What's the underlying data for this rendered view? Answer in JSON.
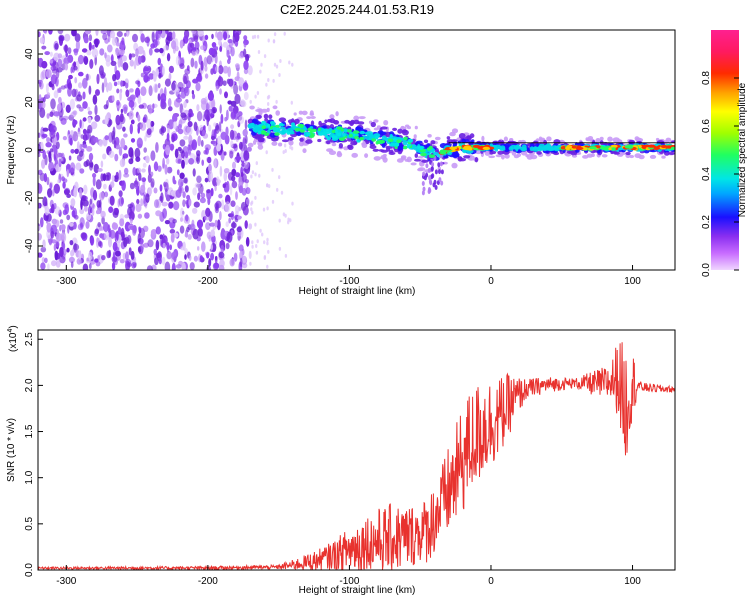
{
  "page_title": "C2E2.2025.244.01.53.R19",
  "chart_data": [
    {
      "type": "heatmap",
      "id": "spectrogram",
      "xlabel": "Height of straight line (km)",
      "ylabel": "Frequency (Hz)",
      "xlim": [
        -320,
        130
      ],
      "ylim": [
        -50,
        50
      ],
      "xticks": [
        -300,
        -200,
        -100,
        0,
        100
      ],
      "xtick_labels": [
        "-300",
        "-200",
        "-100",
        "0",
        "100"
      ],
      "yticks": [
        -40,
        -20,
        0,
        20,
        40
      ],
      "ytick_labels": [
        "-40",
        "-20",
        "0",
        "20",
        "40"
      ],
      "colorbar": {
        "label": "Normalized spectral amplitude",
        "range": [
          0,
          1
        ],
        "ticks": [
          0.0,
          0.2,
          0.4,
          0.6,
          0.8
        ],
        "tick_labels": [
          "0.0",
          "0.2",
          "0.4",
          "0.6",
          "0.8"
        ]
      },
      "regions": {
        "noise_x": [
          -320,
          -170
        ],
        "sparse_x": [
          -170,
          -140
        ],
        "signal_x": [
          -170,
          130
        ]
      },
      "track": {
        "x": [
          -170,
          -150,
          -130,
          -110,
          -90,
          -70,
          -55,
          -45,
          -38,
          -30,
          -20,
          -10,
          0,
          20,
          40,
          60,
          80,
          100,
          130
        ],
        "y": [
          9,
          9,
          8,
          7,
          6,
          4,
          2,
          -1,
          -2,
          0,
          1,
          1,
          1,
          1,
          1,
          1,
          1,
          1,
          1
        ]
      },
      "hot_segments": [
        [
          -35,
          0
        ],
        [
          50,
          90
        ],
        [
          95,
          130
        ]
      ]
    },
    {
      "type": "line",
      "id": "snr",
      "xlabel": "Height of straight line (km)",
      "ylabel": "SNR (10 * v/v)",
      "exponent_label": "(x10",
      "exponent": "4",
      "exponent_close": ")",
      "xlim": [
        -320,
        130
      ],
      "ylim": [
        0.0,
        2.6
      ],
      "xticks": [
        -300,
        -200,
        -100,
        0,
        100
      ],
      "xtick_labels": [
        "-300",
        "-200",
        "-100",
        "0",
        "100"
      ],
      "yticks": [
        0.0,
        0.5,
        1.0,
        1.5,
        2.0,
        2.5
      ],
      "ytick_labels": [
        "0.0",
        "0.5",
        "1.0",
        "1.5",
        "2.0",
        "2.5"
      ],
      "line_color": "#e8322e",
      "series": [
        {
          "name": "SNR",
          "trend_x": [
            -320,
            -200,
            -150,
            -140,
            -120,
            -100,
            -80,
            -60,
            -45,
            -35,
            -25,
            -15,
            -5,
            5,
            15,
            25,
            40,
            60,
            80,
            90,
            95,
            100,
            110,
            130
          ],
          "trend_y": [
            0.02,
            0.02,
            0.03,
            0.05,
            0.1,
            0.2,
            0.28,
            0.32,
            0.4,
            0.65,
            0.95,
            1.3,
            1.5,
            1.6,
            1.8,
            1.95,
            2.0,
            2.02,
            2.0,
            2.05,
            1.7,
            2.0,
            1.97,
            1.95
          ],
          "noise_amp_x": [
            -320,
            -150,
            -130,
            -110,
            -90,
            -70,
            -50,
            -35,
            -20,
            -5,
            10,
            25,
            60,
            85,
            95,
            105,
            130
          ],
          "noise_amp_y": [
            0.01,
            0.02,
            0.08,
            0.15,
            0.3,
            0.35,
            0.3,
            0.4,
            0.55,
            0.5,
            0.35,
            0.1,
            0.05,
            0.2,
            0.6,
            0.05,
            0.03
          ]
        }
      ]
    }
  ],
  "colors": {
    "noise_purple": "#7a2be0",
    "axis": "#000000"
  }
}
